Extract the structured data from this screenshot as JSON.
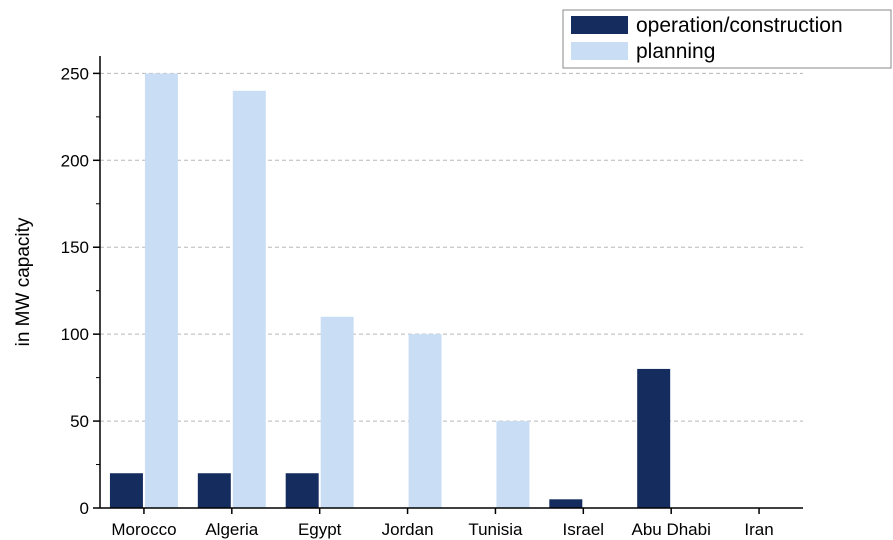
{
  "chart_data": {
    "type": "bar",
    "categories": [
      "Morocco",
      "Algeria",
      "Egypt",
      "Jordan",
      "Tunisia",
      "Israel",
      "Abu Dhabi",
      "Iran"
    ],
    "series": [
      {
        "name": "operation/construction",
        "color": "#142d5e",
        "values": [
          20,
          20,
          20,
          0,
          0,
          5,
          80,
          0
        ]
      },
      {
        "name": "planning",
        "color": "#c9def5",
        "values": [
          250,
          240,
          110,
          100,
          50,
          0,
          0,
          0
        ]
      }
    ],
    "ylabel": "in MW capacity",
    "xlabel": "",
    "ylim": [
      0,
      260
    ],
    "yticks": [
      0,
      50,
      100,
      150,
      200,
      250
    ],
    "grid": "horizontal dashed",
    "legend_position": "top-right"
  }
}
